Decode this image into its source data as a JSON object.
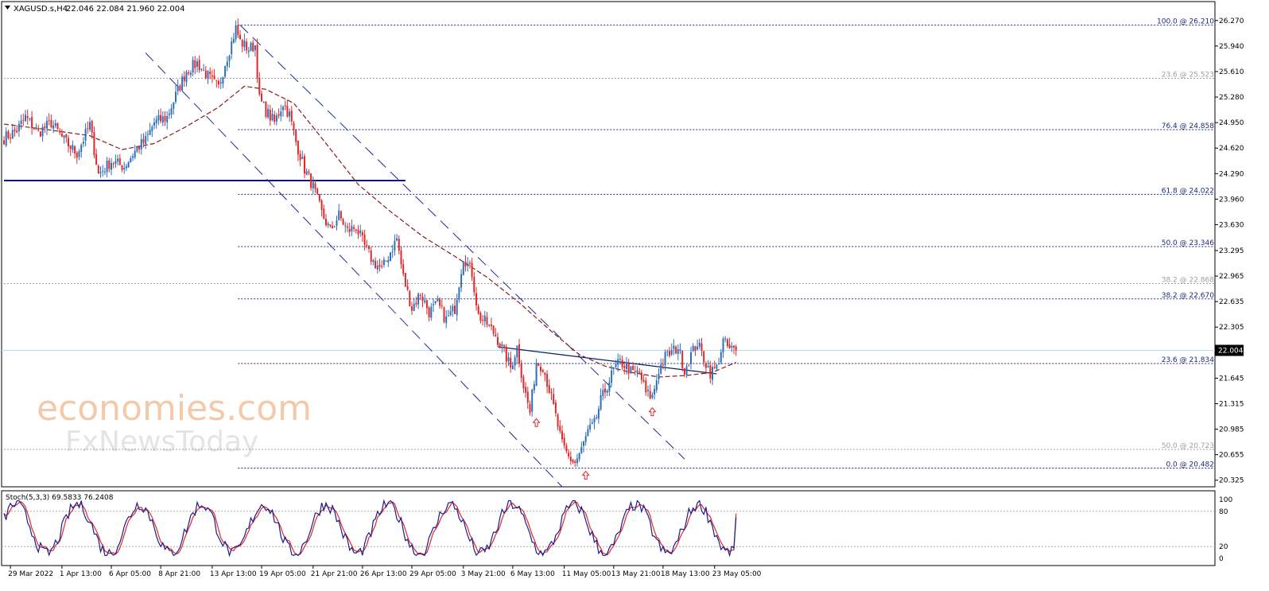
{
  "header": {
    "symbol": "XAGUSD.s,H4",
    "ohlc": "22.046 22.084 21.960 22.004"
  },
  "colors": {
    "bull": "#2e6fb7",
    "bear": "#e0282b",
    "ma": "#8b1a1a",
    "grid_axis": "#000000",
    "fib_dark": "#1c2a7a",
    "fib_light": "#a0a0a0",
    "channel": "#1c2a9a",
    "support": "#0a1a66",
    "current_price_line": "#b8dcec",
    "stoch_main": "#1c1c8c",
    "stoch_signal": "#e0282b",
    "arrow": "#e0282b",
    "watermark": "#f3c9a9"
  },
  "watermark": {
    "line1": "economies.com",
    "line2": "FxNewsToday"
  },
  "chart_data": {
    "type": "candlestick",
    "instrument": "XAGUSD.s",
    "timeframe": "H4",
    "y_range": [
      20.24,
      26.35
    ],
    "x_range_bars": [
      0,
      400
    ],
    "price_ticks": [
      "26.270",
      "25.940",
      "25.610",
      "25.280",
      "24.950",
      "24.620",
      "24.290",
      "23.960",
      "23.630",
      "23.295",
      "22.965",
      "22.635",
      "22.305",
      "21.975",
      "21.645",
      "21.315",
      "20.985",
      "20.655",
      "20.325"
    ],
    "time_labels": [
      {
        "bar": 3,
        "label": "29 Mar 2022"
      },
      {
        "bar": 27,
        "label": "1 Apr 13:00"
      },
      {
        "bar": 50,
        "label": "6 Apr 05:00"
      },
      {
        "bar": 73,
        "label": "8 Apr 21:00"
      },
      {
        "bar": 97,
        "label": "13 Apr 13:00"
      },
      {
        "bar": 120,
        "label": "19 Apr 05:00"
      },
      {
        "bar": 144,
        "label": "21 Apr 21:00"
      },
      {
        "bar": 167,
        "label": "26 Apr 13:00"
      },
      {
        "bar": 190,
        "label": "29 Apr 05:00"
      },
      {
        "bar": 214,
        "label": "3 May 21:00"
      },
      {
        "bar": 237,
        "label": "6 May 13:00"
      },
      {
        "bar": 261,
        "label": "11 May 05:00"
      },
      {
        "bar": 284,
        "label": "13 May 21:00"
      },
      {
        "bar": 307,
        "label": "18 May 13:00"
      },
      {
        "bar": 331,
        "label": "23 May 05:00"
      }
    ],
    "current_price": "22.004",
    "current_price_value": 22.004,
    "price_anchors": [
      [
        0,
        24.75
      ],
      [
        6,
        24.85
      ],
      [
        10,
        25.02
      ],
      [
        16,
        24.82
      ],
      [
        22,
        24.95
      ],
      [
        28,
        24.72
      ],
      [
        34,
        24.55
      ],
      [
        40,
        24.92
      ],
      [
        44,
        24.28
      ],
      [
        50,
        24.45
      ],
      [
        56,
        24.38
      ],
      [
        62,
        24.62
      ],
      [
        66,
        24.72
      ],
      [
        70,
        24.95
      ],
      [
        76,
        25.02
      ],
      [
        80,
        25.3
      ],
      [
        85,
        25.62
      ],
      [
        90,
        25.72
      ],
      [
        95,
        25.55
      ],
      [
        98,
        25.45
      ],
      [
        100,
        25.4
      ],
      [
        103,
        25.72
      ],
      [
        106,
        25.98
      ],
      [
        108,
        26.17
      ],
      [
        110,
        26.0
      ],
      [
        114,
        25.9
      ],
      [
        117,
        25.95
      ],
      [
        119,
        25.25
      ],
      [
        122,
        25.1
      ],
      [
        126,
        24.95
      ],
      [
        130,
        25.2
      ],
      [
        133,
        25.05
      ],
      [
        136,
        24.7
      ],
      [
        140,
        24.35
      ],
      [
        144,
        24.12
      ],
      [
        148,
        23.78
      ],
      [
        152,
        23.55
      ],
      [
        156,
        23.75
      ],
      [
        160,
        23.55
      ],
      [
        164,
        23.6
      ],
      [
        168,
        23.35
      ],
      [
        172,
        23.15
      ],
      [
        176,
        23.05
      ],
      [
        180,
        23.28
      ],
      [
        183,
        23.45
      ],
      [
        186,
        22.95
      ],
      [
        190,
        22.55
      ],
      [
        194,
        22.75
      ],
      [
        198,
        22.5
      ],
      [
        202,
        22.6
      ],
      [
        206,
        22.4
      ],
      [
        210,
        22.55
      ],
      [
        214,
        23.22
      ],
      [
        218,
        23.0
      ],
      [
        221,
        22.45
      ],
      [
        225,
        22.35
      ],
      [
        229,
        22.2
      ],
      [
        233,
        21.98
      ],
      [
        236,
        21.78
      ],
      [
        239,
        22.05
      ],
      [
        242,
        21.55
      ],
      [
        245,
        21.2
      ],
      [
        248,
        21.85
      ],
      [
        251,
        21.8
      ],
      [
        254,
        21.5
      ],
      [
        257,
        21.15
      ],
      [
        260,
        20.78
      ],
      [
        263,
        20.62
      ],
      [
        266,
        20.55
      ],
      [
        269,
        20.72
      ],
      [
        272,
        20.95
      ],
      [
        275,
        21.05
      ],
      [
        278,
        21.35
      ],
      [
        281,
        21.55
      ],
      [
        284,
        21.75
      ],
      [
        287,
        21.85
      ],
      [
        290,
        21.8
      ],
      [
        293,
        21.7
      ],
      [
        296,
        21.72
      ],
      [
        299,
        21.45
      ],
      [
        302,
        21.4
      ],
      [
        305,
        21.75
      ],
      [
        308,
        21.92
      ],
      [
        311,
        21.98
      ],
      [
        314,
        22.05
      ],
      [
        317,
        21.75
      ],
      [
        320,
        21.95
      ],
      [
        323,
        22.1
      ],
      [
        326,
        21.9
      ],
      [
        329,
        21.72
      ],
      [
        332,
        21.78
      ],
      [
        335,
        22.12
      ],
      [
        338,
        22.02
      ],
      [
        341,
        22.004
      ]
    ],
    "moving_average": [
      [
        0,
        24.93
      ],
      [
        20,
        24.86
      ],
      [
        40,
        24.78
      ],
      [
        55,
        24.6
      ],
      [
        70,
        24.68
      ],
      [
        85,
        24.9
      ],
      [
        100,
        25.15
      ],
      [
        112,
        25.42
      ],
      [
        122,
        25.38
      ],
      [
        135,
        25.2
      ],
      [
        148,
        24.75
      ],
      [
        165,
        24.15
      ],
      [
        180,
        23.8
      ],
      [
        195,
        23.48
      ],
      [
        210,
        23.22
      ],
      [
        225,
        22.95
      ],
      [
        240,
        22.62
      ],
      [
        255,
        22.25
      ],
      [
        268,
        21.95
      ],
      [
        280,
        21.8
      ],
      [
        292,
        21.72
      ],
      [
        305,
        21.66
      ],
      [
        318,
        21.68
      ],
      [
        330,
        21.72
      ],
      [
        341,
        21.85
      ]
    ],
    "fibonacci_levels": [
      {
        "label": "100.0 @ 26.210",
        "value": 26.21,
        "style": "dark",
        "from_bar": 109
      },
      {
        "label": "23.6 @ 25.523",
        "value": 25.523,
        "style": "light",
        "from_bar": 0
      },
      {
        "label": "76.4 @ 24.858",
        "value": 24.858,
        "style": "dark",
        "from_bar": 109
      },
      {
        "label": "61.8 @ 24.022",
        "value": 24.022,
        "style": "dark",
        "from_bar": 109
      },
      {
        "label": "50.0 @ 23.346",
        "value": 23.346,
        "style": "dark",
        "from_bar": 109
      },
      {
        "label": "38.2 @ 22.868",
        "value": 22.868,
        "style": "light",
        "from_bar": 0
      },
      {
        "label": "38.2 @ 22.670",
        "value": 22.67,
        "style": "dark",
        "from_bar": 109
      },
      {
        "label": "23.6 @ 21.834",
        "value": 21.834,
        "style": "dark",
        "from_bar": 109
      },
      {
        "label": "50.0 @ 20.723",
        "value": 20.723,
        "style": "light",
        "from_bar": 0
      },
      {
        "label": "0.0 @ 20.482",
        "value": 20.482,
        "style": "dark",
        "from_bar": 109
      }
    ],
    "support_line": {
      "from_bar": 0,
      "to_bar": 187,
      "value": 24.2
    },
    "channel_lines": [
      {
        "from": [
          110,
          26.21
        ],
        "to": [
          317,
          20.6
        ]
      },
      {
        "from": [
          66,
          25.85
        ],
        "to": [
          260,
          20.24
        ]
      }
    ],
    "trend_lines": [
      {
        "from": [
          230,
          22.05
        ],
        "to": [
          332,
          21.7
        ]
      }
    ],
    "arrows": [
      {
        "bar": 248,
        "value": 21.06
      },
      {
        "bar": 271,
        "value": 20.38
      },
      {
        "bar": 302,
        "value": 21.2
      }
    ],
    "stochastic": {
      "title": "Stoch(5,3,3) 69.5833 76.2408",
      "main": 69.5833,
      "signal": 76.2408,
      "y_range": [
        0,
        100
      ],
      "levels": [
        20,
        80
      ],
      "ticks": [
        "100",
        "80",
        "20",
        "0"
      ]
    }
  }
}
